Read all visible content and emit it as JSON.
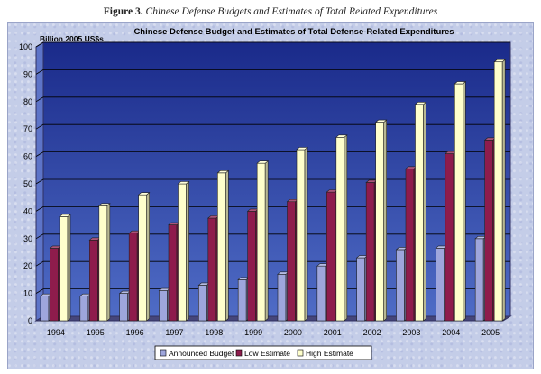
{
  "caption": {
    "number": "Figure 3.",
    "text": "Chinese Defense Budgets and Estimates of Total Related Expenditures"
  },
  "colors": {
    "announced": "#9ea6dc",
    "low": "#8e1c4c",
    "high": "#ffffcc",
    "plot_top": "#1a2a8a",
    "plot_bottom": "#4f6cc6",
    "floor": "#46467a"
  },
  "chart_data": {
    "type": "bar",
    "title": "Chinese Defense Budget and Estimates of Total Defense-Related Expenditures",
    "ylabel": "Billion 2005 US$s",
    "xlabel": "",
    "ylim": [
      0,
      100
    ],
    "yticks": [
      "0",
      "10",
      "20",
      "30",
      "40",
      "50",
      "60",
      "70",
      "80",
      "90",
      "100"
    ],
    "categories": [
      "1994",
      "1995",
      "1996",
      "1997",
      "1998",
      "1999",
      "2000",
      "2001",
      "2002",
      "2003",
      "2004",
      "2005"
    ],
    "series": [
      {
        "name": "Announced Budget",
        "values": [
          9,
          9,
          10,
          11,
          13,
          15,
          17,
          20,
          23,
          26,
          26.5,
          30
        ]
      },
      {
        "name": "Low Estimate",
        "values": [
          26.5,
          29.5,
          32,
          35,
          37.5,
          40,
          43.5,
          47,
          50.5,
          55.5,
          61,
          66
        ]
      },
      {
        "name": "High Estimate",
        "values": [
          38,
          42,
          46,
          50,
          54,
          57.5,
          62.5,
          67,
          72.5,
          79,
          86.5,
          94.5
        ]
      }
    ],
    "legend_position": "bottom"
  }
}
